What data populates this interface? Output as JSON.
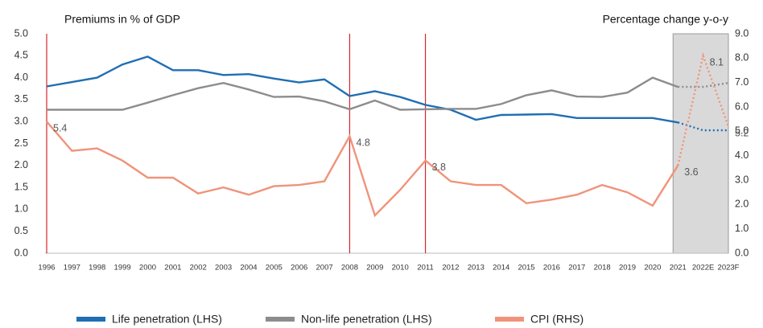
{
  "chart_data": {
    "type": "line",
    "title": "Premiums in % of GDP",
    "y2_title": "Percentage change y-o-y",
    "categories": [
      "1996",
      "1997",
      "1998",
      "1999",
      "2000",
      "2001",
      "2002",
      "2003",
      "2004",
      "2005",
      "2006",
      "2007",
      "2008",
      "2009",
      "2010",
      "2011",
      "2012",
      "2013",
      "2014",
      "2015",
      "2016",
      "2017",
      "2018",
      "2019",
      "2020",
      "2021",
      "2022E",
      "2023F"
    ],
    "series": [
      {
        "name": "Life penetration (LHS)",
        "color": "#1f6eb4",
        "values": [
          3.8,
          3.9,
          4.0,
          4.3,
          4.48,
          4.17,
          4.17,
          4.06,
          4.08,
          3.98,
          3.89,
          3.96,
          3.58,
          3.69,
          3.56,
          3.38,
          3.27,
          3.04,
          3.15,
          3.16,
          3.17,
          3.08,
          3.08,
          3.08,
          3.08,
          2.98,
          2.8,
          2.8
        ]
      },
      {
        "name": "Non-life penetration (LHS)",
        "color": "#8c8c8c",
        "values": [
          3.27,
          3.27,
          3.27,
          3.27,
          3.43,
          3.6,
          3.76,
          3.88,
          3.73,
          3.56,
          3.57,
          3.46,
          3.28,
          3.48,
          3.27,
          3.28,
          3.29,
          3.29,
          3.4,
          3.6,
          3.71,
          3.57,
          3.56,
          3.66,
          4.0,
          3.79,
          3.79,
          3.88
        ]
      },
      {
        "name": "CPI (RHS)",
        "color": "#f0937a",
        "axis": "y2",
        "values": [
          5.4,
          4.2,
          4.3,
          3.8,
          3.1,
          3.1,
          2.45,
          2.7,
          2.4,
          2.75,
          2.8,
          2.95,
          4.8,
          1.55,
          2.6,
          3.8,
          2.95,
          2.8,
          2.8,
          2.05,
          2.2,
          2.4,
          2.8,
          2.5,
          1.95,
          3.6,
          8.1,
          5.2
        ],
        "label_indices": [
          0,
          12,
          15,
          25,
          26,
          27
        ]
      }
    ],
    "ylim": [
      0,
      5
    ],
    "yticks": [
      {
        "value": 0,
        "label": "0.0"
      },
      {
        "value": 0.5,
        "label": "0.5"
      },
      {
        "value": 1,
        "label": "1.0"
      },
      {
        "value": 1.5,
        "label": "1.5"
      },
      {
        "value": 2,
        "label": "2.0"
      },
      {
        "value": 2.5,
        "label": "2.5"
      },
      {
        "value": 3,
        "label": "3.0"
      },
      {
        "value": 3.5,
        "label": "3.5"
      },
      {
        "value": 4,
        "label": "4.0"
      },
      {
        "value": 4.5,
        "label": "4.5"
      },
      {
        "value": 5,
        "label": "5.0"
      }
    ],
    "y2lim": [
      0,
      9
    ],
    "y2ticks": [
      {
        "value": 0,
        "label": "0.0"
      },
      {
        "value": 1,
        "label": "1.0"
      },
      {
        "value": 2,
        "label": "2.0"
      },
      {
        "value": 3,
        "label": "3.0"
      },
      {
        "value": 4,
        "label": "4.0"
      },
      {
        "value": 5,
        "label": "5.0"
      },
      {
        "value": 6,
        "label": "6.0"
      },
      {
        "value": 7,
        "label": "7.0"
      },
      {
        "value": 8,
        "label": "8.0"
      },
      {
        "value": 9,
        "label": "9.0"
      }
    ],
    "vline_indices": [
      0,
      12,
      15
    ],
    "vline_color": "#d9262b",
    "forecast_start": 25
  }
}
